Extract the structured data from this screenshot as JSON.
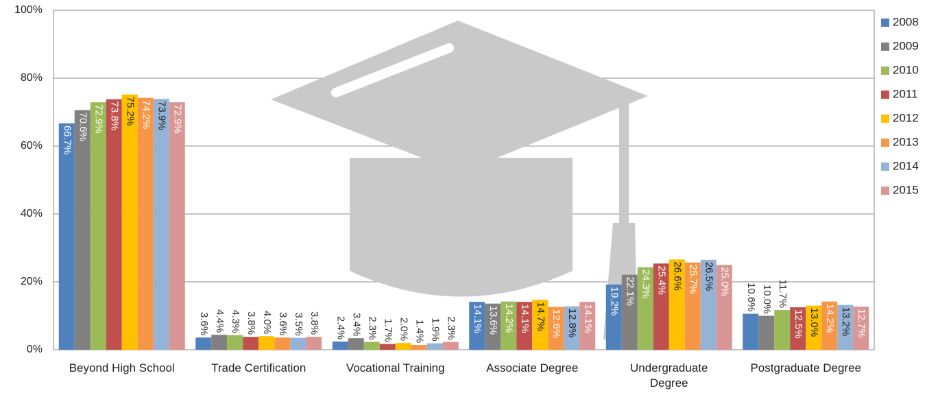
{
  "chart_data": {
    "type": "bar",
    "categories": [
      "Beyond High School",
      "Trade Certification",
      "Vocational Training",
      "Associate Degree",
      "Undergraduate Degree",
      "Postgraduate Degree"
    ],
    "series": [
      {
        "name": "2008",
        "color": "#4f81bd",
        "values": [
          66.7,
          3.6,
          2.4,
          14.1,
          19.2,
          10.6
        ],
        "value_labels": [
          "66.7%",
          "3.6%",
          "2.4%",
          "14.1%",
          "19.2%",
          "10.6%"
        ]
      },
      {
        "name": "2009",
        "color": "#808080",
        "values": [
          70.6,
          4.4,
          3.4,
          13.6,
          22.1,
          10.0
        ],
        "value_labels": [
          "70.6%",
          "4.4%",
          "3.4%",
          "13.6%",
          "22.1%",
          "10.0%"
        ]
      },
      {
        "name": "2010",
        "color": "#9bbb59",
        "values": [
          72.9,
          4.3,
          2.3,
          14.2,
          24.3,
          11.7
        ],
        "value_labels": [
          "72.9%",
          "4.3%",
          "2.3%",
          "14.2%",
          "24.3%",
          "11.7%"
        ]
      },
      {
        "name": "2011",
        "color": "#c0504d",
        "values": [
          73.8,
          3.8,
          1.7,
          14.1,
          25.4,
          12.5
        ],
        "value_labels": [
          "73.8%",
          "3.8%",
          "1.7%",
          "14.1%",
          "25.4%",
          "12.5%"
        ]
      },
      {
        "name": "2012",
        "color": "#ffc000",
        "values": [
          75.2,
          4.0,
          2.0,
          14.7,
          26.6,
          13.0
        ],
        "value_labels": [
          "75.2%",
          "4.0%",
          "2.0%",
          "14.7%",
          "26.6%",
          "13.0%"
        ]
      },
      {
        "name": "2013",
        "color": "#f79646",
        "values": [
          74.2,
          3.6,
          1.4,
          12.6,
          25.7,
          14.2
        ],
        "value_labels": [
          "74.2%",
          "3.6%",
          "1.4%",
          "12.6%",
          "25.7%",
          "14.2%"
        ]
      },
      {
        "name": "2014",
        "color": "#95b3d7",
        "values": [
          73.9,
          3.5,
          1.9,
          12.8,
          26.5,
          13.2
        ],
        "value_labels": [
          "73.9%",
          "3.5%",
          "1.9%",
          "12.8%",
          "26.5%",
          "13.2%"
        ]
      },
      {
        "name": "2015",
        "color": "#d99694",
        "values": [
          72.9,
          3.8,
          2.3,
          14.1,
          25.0,
          12.7
        ],
        "value_labels": [
          "72.9%",
          "3.8%",
          "2.3%",
          "14.1%",
          "25.0%",
          "12.7%"
        ]
      }
    ],
    "ylim": [
      0,
      100
    ],
    "yticks": [
      {
        "value": 0,
        "label": "0%"
      },
      {
        "value": 20,
        "label": "20%"
      },
      {
        "value": 40,
        "label": "40%"
      },
      {
        "value": 60,
        "label": "60%"
      },
      {
        "value": 80,
        "label": "80%"
      },
      {
        "value": 100,
        "label": "100%"
      }
    ],
    "grid": true,
    "legend": "right"
  }
}
